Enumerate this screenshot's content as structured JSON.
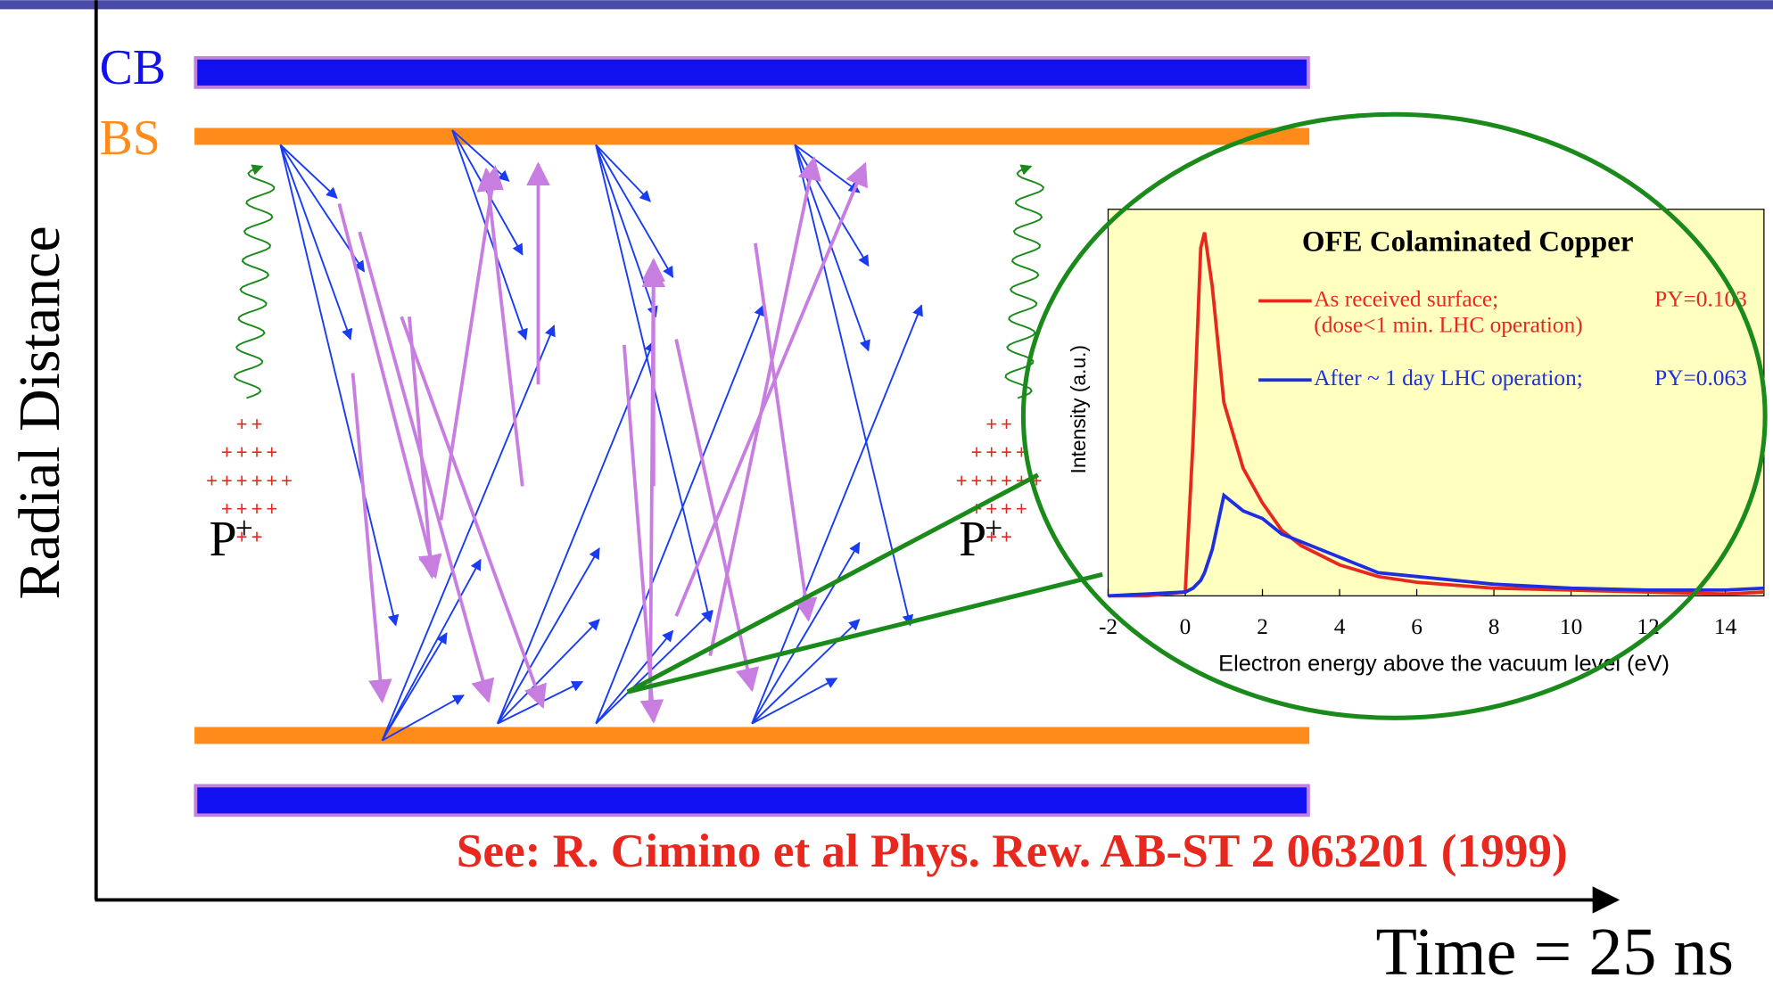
{
  "slide": {
    "labels": {
      "cb": "CB",
      "bs": "BS",
      "y_axis": "Radial Distance",
      "x_axis": "Time = 25 ns"
    },
    "charge_rows": [
      "++",
      "++++",
      "++++++",
      "++++",
      "++"
    ],
    "proton": {
      "letter": "P",
      "charge": "+"
    },
    "reference": "See: R. Cimino et al Phys. Rew. AB-ST 2 063201 (1999)"
  },
  "chart_data": {
    "type": "line",
    "title": "OFE Colaminated Copper",
    "x_label": "Electron energy above the vacuum level (eV)",
    "y_label": "Intensity (a.u.)",
    "x": [
      -2,
      -1,
      0,
      0.2,
      0.4,
      0.5,
      0.7,
      1,
      1.5,
      2,
      2.5,
      3,
      4,
      5,
      6,
      8,
      10,
      12,
      14,
      15
    ],
    "series": [
      {
        "name": "As received surface;",
        "py_label": "PY=0.103",
        "note": "(dose<1 min. LHC operation)",
        "color": "#e8281e",
        "values": [
          0,
          0,
          1,
          40,
          90,
          94,
          80,
          50,
          33,
          24,
          17,
          13,
          8,
          5,
          3.5,
          2,
          1.5,
          1,
          0.5,
          1
        ]
      },
      {
        "name": "After ~ 1 day  LHC operation;",
        "py_label": "PY=0.063",
        "color": "#1e2ee0",
        "values": [
          0,
          0.5,
          1,
          2,
          4,
          6,
          12,
          26,
          22,
          20,
          16,
          14,
          10,
          6,
          5,
          3,
          2,
          1.5,
          1.5,
          2
        ]
      }
    ],
    "xlim": [
      -2,
      15
    ],
    "ylim": [
      0,
      100
    ],
    "xticks": [
      -2,
      0,
      2,
      4,
      6,
      8,
      10,
      12,
      14
    ]
  }
}
